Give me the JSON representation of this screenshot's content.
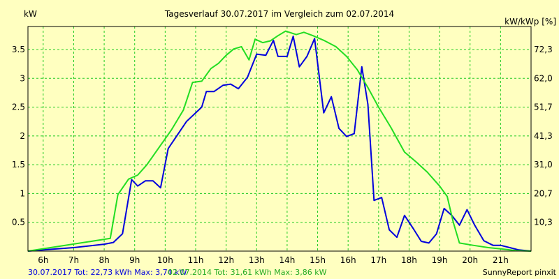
{
  "chart_data": {
    "type": "line",
    "title": "Tagesverlauf 30.07.2017 im Vergleich zum 02.07.2014",
    "ylabel_left": "kW",
    "ylabel_right": "kW/kWp [%]",
    "x_axis_unit": "hour of day",
    "xlim": [
      5.5,
      22.0
    ],
    "ylim": [
      0,
      3.9
    ],
    "x_ticks": [
      {
        "value": 6,
        "label": "6h"
      },
      {
        "value": 7,
        "label": "7h"
      },
      {
        "value": 8,
        "label": "8h"
      },
      {
        "value": 9,
        "label": "9h"
      },
      {
        "value": 10,
        "label": "10h"
      },
      {
        "value": 11,
        "label": "11h"
      },
      {
        "value": 12,
        "label": "12h"
      },
      {
        "value": 13,
        "label": "13h"
      },
      {
        "value": 14,
        "label": "14h"
      },
      {
        "value": 15,
        "label": "15h"
      },
      {
        "value": 16,
        "label": "16h"
      },
      {
        "value": 17,
        "label": "17h"
      },
      {
        "value": 18,
        "label": "18h"
      },
      {
        "value": 19,
        "label": "19h"
      },
      {
        "value": 20,
        "label": "20h"
      },
      {
        "value": 21,
        "label": "21h"
      }
    ],
    "y_ticks_left": [
      {
        "value": 0.5,
        "label": "0.5"
      },
      {
        "value": 1,
        "label": "1"
      },
      {
        "value": 1.5,
        "label": "1.5"
      },
      {
        "value": 2,
        "label": "2"
      },
      {
        "value": 2.5,
        "label": "2.5"
      },
      {
        "value": 3,
        "label": "3"
      },
      {
        "value": 3.5,
        "label": "3.5"
      }
    ],
    "y_ticks_right": [
      {
        "value": 0.5,
        "label": "10,3"
      },
      {
        "value": 1.0,
        "label": "20,7"
      },
      {
        "value": 1.5,
        "label": "31,0"
      },
      {
        "value": 2.0,
        "label": "41,3"
      },
      {
        "value": 2.5,
        "label": "51,7"
      },
      {
        "value": 3.0,
        "label": "62,0"
      },
      {
        "value": 3.5,
        "label": "72,3"
      }
    ],
    "grid": true,
    "series": [
      {
        "name": "30.07.2017",
        "color": "#0000DD",
        "points": [
          [
            5.5,
            0.0
          ],
          [
            6.0,
            0.02
          ],
          [
            7.0,
            0.06
          ],
          [
            8.0,
            0.12
          ],
          [
            8.3,
            0.15
          ],
          [
            8.6,
            0.3
          ],
          [
            8.9,
            1.24
          ],
          [
            9.1,
            1.13
          ],
          [
            9.35,
            1.22
          ],
          [
            9.6,
            1.22
          ],
          [
            9.85,
            1.1
          ],
          [
            10.1,
            1.78
          ],
          [
            10.7,
            2.25
          ],
          [
            11.2,
            2.5
          ],
          [
            11.35,
            2.77
          ],
          [
            11.6,
            2.77
          ],
          [
            11.9,
            2.88
          ],
          [
            12.15,
            2.9
          ],
          [
            12.4,
            2.82
          ],
          [
            12.7,
            3.02
          ],
          [
            13.0,
            3.42
          ],
          [
            13.3,
            3.4
          ],
          [
            13.55,
            3.66
          ],
          [
            13.7,
            3.38
          ],
          [
            14.0,
            3.38
          ],
          [
            14.2,
            3.73
          ],
          [
            14.4,
            3.2
          ],
          [
            14.65,
            3.38
          ],
          [
            14.9,
            3.69
          ],
          [
            15.2,
            2.4
          ],
          [
            15.45,
            2.68
          ],
          [
            15.7,
            2.13
          ],
          [
            15.95,
            1.99
          ],
          [
            16.2,
            2.04
          ],
          [
            16.45,
            3.2
          ],
          [
            16.65,
            2.55
          ],
          [
            16.85,
            0.88
          ],
          [
            17.1,
            0.93
          ],
          [
            17.35,
            0.37
          ],
          [
            17.6,
            0.24
          ],
          [
            17.85,
            0.62
          ],
          [
            18.15,
            0.38
          ],
          [
            18.4,
            0.17
          ],
          [
            18.65,
            0.14
          ],
          [
            18.9,
            0.3
          ],
          [
            19.15,
            0.74
          ],
          [
            19.4,
            0.62
          ],
          [
            19.65,
            0.45
          ],
          [
            19.9,
            0.72
          ],
          [
            20.15,
            0.45
          ],
          [
            20.45,
            0.18
          ],
          [
            20.75,
            0.1
          ],
          [
            21.0,
            0.1
          ],
          [
            21.3,
            0.06
          ],
          [
            21.6,
            0.02
          ],
          [
            22.0,
            0.0
          ]
        ]
      },
      {
        "name": "02.07.2014",
        "color": "#22DD22",
        "points": [
          [
            5.5,
            0.0
          ],
          [
            8.2,
            0.22
          ],
          [
            8.45,
            0.98
          ],
          [
            8.8,
            1.25
          ],
          [
            9.1,
            1.32
          ],
          [
            9.4,
            1.5
          ],
          [
            9.8,
            1.8
          ],
          [
            10.2,
            2.1
          ],
          [
            10.6,
            2.45
          ],
          [
            10.9,
            2.93
          ],
          [
            11.2,
            2.95
          ],
          [
            11.5,
            3.17
          ],
          [
            11.75,
            3.26
          ],
          [
            12.0,
            3.4
          ],
          [
            12.25,
            3.51
          ],
          [
            12.5,
            3.55
          ],
          [
            12.75,
            3.32
          ],
          [
            12.95,
            3.68
          ],
          [
            13.2,
            3.62
          ],
          [
            13.45,
            3.65
          ],
          [
            13.7,
            3.74
          ],
          [
            13.95,
            3.82
          ],
          [
            14.3,
            3.76
          ],
          [
            14.55,
            3.8
          ],
          [
            14.85,
            3.74
          ],
          [
            15.2,
            3.66
          ],
          [
            15.6,
            3.55
          ],
          [
            15.95,
            3.38
          ],
          [
            16.3,
            3.15
          ],
          [
            16.65,
            2.84
          ],
          [
            17.0,
            2.5
          ],
          [
            17.4,
            2.15
          ],
          [
            17.85,
            1.72
          ],
          [
            18.25,
            1.54
          ],
          [
            18.6,
            1.37
          ],
          [
            19.0,
            1.13
          ],
          [
            19.25,
            0.95
          ],
          [
            19.45,
            0.5
          ],
          [
            19.65,
            0.14
          ],
          [
            20.1,
            0.1
          ],
          [
            20.6,
            0.06
          ],
          [
            21.0,
            0.04
          ],
          [
            21.5,
            0.01
          ],
          [
            22.0,
            0.0
          ]
        ]
      }
    ]
  },
  "footer": {
    "series1_text": "30.07.2017 Tot: 22,73 kWh Max: 3,74 kW",
    "series2_text": "02.07.2014 Tot: 31,61 kWh Max: 3,86 kW",
    "credit": "SunnyReport pinxit"
  },
  "colors": {
    "background": "#FFFFC0",
    "grid": "#22CC22",
    "series1": "#0000DD",
    "series2": "#22DD22",
    "footer_series1": "#0000DD",
    "footer_series2": "#22AA22"
  }
}
